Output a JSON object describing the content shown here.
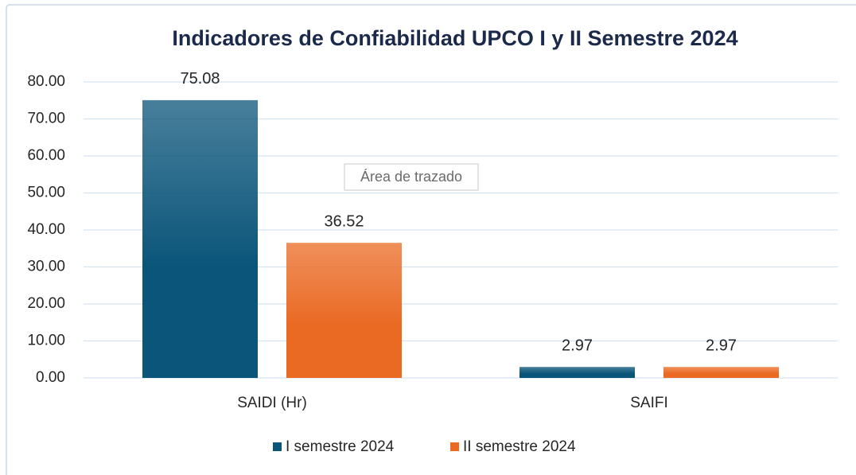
{
  "chart_data": {
    "type": "bar",
    "title": "Indicadores de Confiabilidad UPCO I y II Semestre 2024",
    "categories": [
      "SAIDI (Hr)",
      "SAIFI"
    ],
    "series": [
      {
        "name": "I semestre 2024",
        "color": "#0b557a",
        "values": [
          75.08,
          2.97
        ]
      },
      {
        "name": "II semestre 2024",
        "color": "#ea6a24",
        "values": [
          36.52,
          2.97
        ]
      }
    ],
    "ylim": [
      0,
      80
    ],
    "yticks": [
      {
        "value": 0,
        "label": "0.00"
      },
      {
        "value": 10,
        "label": "10.00"
      },
      {
        "value": 20,
        "label": "20.00"
      },
      {
        "value": 30,
        "label": "30.00"
      },
      {
        "value": 40,
        "label": "40.00"
      },
      {
        "value": 50,
        "label": "50.00"
      },
      {
        "value": 60,
        "label": "60.00"
      },
      {
        "value": 70,
        "label": "70.00"
      },
      {
        "value": 80,
        "label": "80.00"
      }
    ],
    "grid": true,
    "legend": "bottom",
    "tooltip": "Área de trazado"
  }
}
